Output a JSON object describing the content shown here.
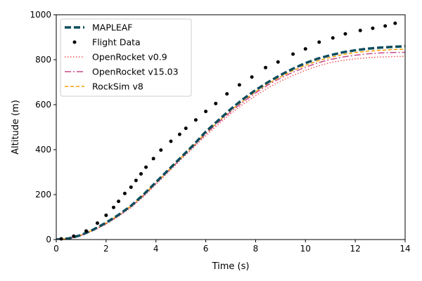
{
  "chart_data": {
    "type": "line",
    "title": "",
    "xlabel": "Time (s)",
    "ylabel": "Altitude (m)",
    "xlim": [
      0,
      14
    ],
    "ylim": [
      0,
      1000
    ],
    "xticks": [
      0,
      2,
      4,
      6,
      8,
      10,
      12,
      14
    ],
    "yticks": [
      0,
      200,
      400,
      600,
      800,
      1000
    ],
    "grid": false,
    "legend_position": "top-left",
    "series": [
      {
        "name": "MAPLEAF",
        "style": "dashed-thick",
        "color": "#0e4d5e",
        "x": [
          0,
          0.5,
          1,
          1.5,
          2,
          2.5,
          3,
          3.5,
          4,
          4.5,
          5,
          5.5,
          6,
          6.5,
          7,
          7.5,
          8,
          8.5,
          9,
          9.5,
          10,
          10.5,
          11,
          11.5,
          12,
          12.5,
          13,
          13.5,
          14
        ],
        "y": [
          0,
          5,
          20,
          45,
          75,
          110,
          150,
          200,
          255,
          310,
          365,
          420,
          480,
          530,
          580,
          625,
          665,
          700,
          732,
          760,
          785,
          805,
          820,
          833,
          842,
          849,
          854,
          857,
          860
        ]
      },
      {
        "name": "Flight Data",
        "style": "dots",
        "color": "#000000",
        "x": [
          0.2,
          0.7,
          1.2,
          1.65,
          2.0,
          2.3,
          2.5,
          2.75,
          3.0,
          3.2,
          3.4,
          3.6,
          3.9,
          4.2,
          4.6,
          4.95,
          5.2,
          5.6,
          6.0,
          6.4,
          6.85,
          7.35,
          7.85,
          8.4,
          8.9,
          9.5,
          10.0,
          10.55,
          11.1,
          11.6,
          12.2,
          12.7,
          13.2,
          13.6
        ],
        "y": [
          3,
          15,
          38,
          73,
          108,
          143,
          170,
          205,
          233,
          263,
          292,
          322,
          360,
          398,
          437,
          468,
          495,
          532,
          570,
          605,
          648,
          688,
          723,
          765,
          790,
          825,
          848,
          878,
          897,
          915,
          930,
          940,
          950,
          962
        ]
      },
      {
        "name": "OpenRocket v0.9",
        "style": "dotted",
        "color": "#f0555a",
        "x": [
          0,
          0.5,
          1,
          1.5,
          2,
          2.5,
          3,
          3.5,
          4,
          4.5,
          5,
          5.5,
          6,
          6.5,
          7,
          7.5,
          8,
          8.5,
          9,
          9.5,
          10,
          10.5,
          11,
          11.5,
          12,
          12.5,
          13,
          13.5,
          14
        ],
        "y": [
          0,
          4,
          18,
          40,
          68,
          103,
          142,
          190,
          245,
          300,
          355,
          408,
          462,
          512,
          560,
          602,
          640,
          675,
          705,
          730,
          753,
          772,
          787,
          797,
          804,
          809,
          812,
          814,
          815
        ]
      },
      {
        "name": "OpenRocket v15.03",
        "style": "dashdot",
        "color": "#c94a8c",
        "x": [
          0,
          0.5,
          1,
          1.5,
          2,
          2.5,
          3,
          3.5,
          4,
          4.5,
          5,
          5.5,
          6,
          6.5,
          7,
          7.5,
          8,
          8.5,
          9,
          9.5,
          10,
          10.5,
          11,
          11.5,
          12,
          12.5,
          13,
          13.5,
          14
        ],
        "y": [
          0,
          4,
          19,
          42,
          71,
          106,
          146,
          196,
          250,
          305,
          360,
          414,
          470,
          520,
          568,
          612,
          652,
          688,
          718,
          744,
          767,
          786,
          801,
          812,
          820,
          826,
          830,
          832,
          833
        ]
      },
      {
        "name": "RockSim v8",
        "style": "dashed",
        "color": "#f5a000",
        "x": [
          0,
          0.5,
          1,
          1.5,
          2,
          2.5,
          3,
          3.5,
          4,
          4.5,
          5,
          5.5,
          6,
          6.5,
          7,
          7.5,
          8,
          8.5,
          9,
          9.5,
          10,
          10.5,
          11,
          11.5,
          12,
          12.5,
          13,
          13.5,
          14
        ],
        "y": [
          0,
          5,
          20,
          44,
          74,
          109,
          149,
          199,
          253,
          308,
          363,
          418,
          475,
          525,
          574,
          618,
          658,
          694,
          724,
          752,
          775,
          795,
          810,
          823,
          832,
          838,
          842,
          845,
          847
        ]
      }
    ]
  }
}
